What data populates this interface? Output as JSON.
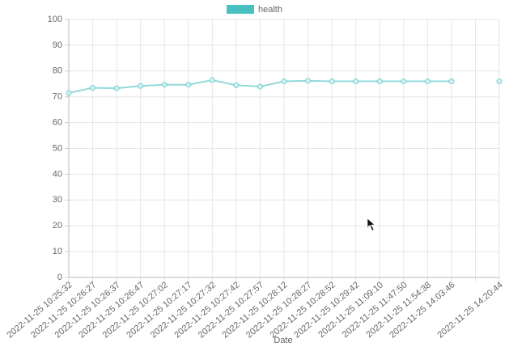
{
  "chart_data": {
    "type": "line",
    "x_label": "Date",
    "categories": [
      "2022-11-25 10:25:32",
      "2022-11-25 10:26:27",
      "2022-11-25 10:26:37",
      "2022-11-25 10:26:47",
      "2022-11-25 10:27:02",
      "2022-11-25 10:27:17",
      "2022-11-25 10:27:32",
      "2022-11-25 10:27:42",
      "2022-11-25 10:27:57",
      "2022-11-25 10:28:12",
      "2022-11-25 10:28:27",
      "2022-11-25 10:28:52",
      "2022-11-25 10:29:42",
      "2022-11-25 11:09:10",
      "2022-11-25 11:47:50",
      "2022-11-25 11:54:38",
      "2022-11-25 14:03:46",
      null,
      "2022-11-25 14:20:44"
    ],
    "series": [
      {
        "name": "health",
        "color": "#4bc0c0",
        "values": [
          71.5,
          73.5,
          73.3,
          74.2,
          74.7,
          74.7,
          76.5,
          74.5,
          74,
          76,
          76.2,
          76,
          76,
          76,
          76,
          76,
          76,
          null,
          76
        ]
      }
    ],
    "ylim": [
      0,
      100
    ],
    "yticks": [
      0,
      10,
      20,
      30,
      40,
      50,
      60,
      70,
      80,
      90,
      100
    ],
    "grid": true,
    "legend": "top"
  }
}
